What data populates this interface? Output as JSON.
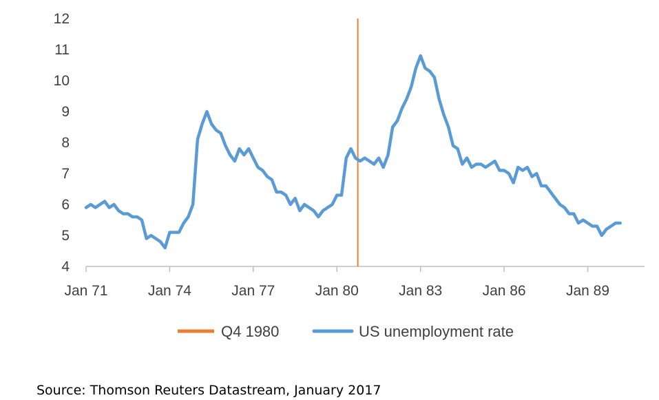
{
  "source_note": "Source: Thomson Reuters Datastream, January 2017",
  "chart_data": {
    "type": "line",
    "title": "",
    "xlabel": "",
    "ylabel": "",
    "x_range": [
      "1971-01",
      "1990-01"
    ],
    "ylim": [
      4,
      12
    ],
    "yticks": [
      4,
      5,
      6,
      7,
      8,
      9,
      10,
      11,
      12
    ],
    "y_tick_labels": [
      "4",
      "5",
      "6",
      "7",
      "8",
      "9",
      "10",
      "11",
      "12"
    ],
    "x_ticks": [
      "1971-01",
      "1974-01",
      "1977-01",
      "1980-01",
      "1983-01",
      "1986-01",
      "1989-01"
    ],
    "x_tick_labels": [
      "Jan 71",
      "Jan 74",
      "Jan 77",
      "Jan 80",
      "Jan 83",
      "Jan 86",
      "Jan 89"
    ],
    "grid": false,
    "legend_position": "bottom",
    "colors": {
      "series": "#5B9BD5",
      "marker": "#ED7D31",
      "axis": "#BFBFBF",
      "text": "#404040"
    },
    "marker_line": {
      "name": "Q4 1980",
      "x": "1980-10"
    },
    "series": [
      {
        "name": "US unemployment rate",
        "points": [
          [
            "1971-01",
            5.9
          ],
          [
            "1971-03",
            6.0
          ],
          [
            "1971-05",
            5.9
          ],
          [
            "1971-07",
            6.0
          ],
          [
            "1971-09",
            6.1
          ],
          [
            "1971-11",
            5.9
          ],
          [
            "1972-01",
            6.0
          ],
          [
            "1972-03",
            5.8
          ],
          [
            "1972-05",
            5.7
          ],
          [
            "1972-07",
            5.7
          ],
          [
            "1972-09",
            5.6
          ],
          [
            "1972-11",
            5.6
          ],
          [
            "1973-01",
            5.5
          ],
          [
            "1973-03",
            4.9
          ],
          [
            "1973-05",
            5.0
          ],
          [
            "1973-07",
            4.9
          ],
          [
            "1973-09",
            4.8
          ],
          [
            "1973-11",
            4.6
          ],
          [
            "1974-01",
            5.1
          ],
          [
            "1974-03",
            5.1
          ],
          [
            "1974-05",
            5.1
          ],
          [
            "1974-07",
            5.4
          ],
          [
            "1974-09",
            5.6
          ],
          [
            "1974-11",
            6.0
          ],
          [
            "1975-01",
            8.1
          ],
          [
            "1975-03",
            8.6
          ],
          [
            "1975-05",
            9.0
          ],
          [
            "1975-07",
            8.6
          ],
          [
            "1975-09",
            8.4
          ],
          [
            "1975-11",
            8.3
          ],
          [
            "1976-01",
            7.9
          ],
          [
            "1976-03",
            7.6
          ],
          [
            "1976-05",
            7.4
          ],
          [
            "1976-07",
            7.8
          ],
          [
            "1976-09",
            7.6
          ],
          [
            "1976-11",
            7.8
          ],
          [
            "1977-01",
            7.5
          ],
          [
            "1977-03",
            7.2
          ],
          [
            "1977-05",
            7.1
          ],
          [
            "1977-07",
            6.9
          ],
          [
            "1977-09",
            6.8
          ],
          [
            "1977-11",
            6.4
          ],
          [
            "1978-01",
            6.4
          ],
          [
            "1978-03",
            6.3
          ],
          [
            "1978-05",
            6.0
          ],
          [
            "1978-07",
            6.2
          ],
          [
            "1978-09",
            5.8
          ],
          [
            "1978-11",
            6.0
          ],
          [
            "1979-01",
            5.9
          ],
          [
            "1979-03",
            5.8
          ],
          [
            "1979-05",
            5.6
          ],
          [
            "1979-07",
            5.8
          ],
          [
            "1979-09",
            5.9
          ],
          [
            "1979-11",
            6.0
          ],
          [
            "1980-01",
            6.3
          ],
          [
            "1980-03",
            6.3
          ],
          [
            "1980-05",
            7.5
          ],
          [
            "1980-07",
            7.8
          ],
          [
            "1980-09",
            7.5
          ],
          [
            "1980-11",
            7.4
          ],
          [
            "1981-01",
            7.5
          ],
          [
            "1981-03",
            7.4
          ],
          [
            "1981-05",
            7.3
          ],
          [
            "1981-07",
            7.5
          ],
          [
            "1981-09",
            7.2
          ],
          [
            "1981-11",
            7.6
          ],
          [
            "1982-01",
            8.5
          ],
          [
            "1982-03",
            8.7
          ],
          [
            "1982-05",
            9.1
          ],
          [
            "1982-07",
            9.4
          ],
          [
            "1982-09",
            9.8
          ],
          [
            "1982-11",
            10.4
          ],
          [
            "1983-01",
            10.8
          ],
          [
            "1983-03",
            10.4
          ],
          [
            "1983-05",
            10.3
          ],
          [
            "1983-07",
            10.1
          ],
          [
            "1983-09",
            9.4
          ],
          [
            "1983-11",
            8.9
          ],
          [
            "1984-01",
            8.5
          ],
          [
            "1984-03",
            7.9
          ],
          [
            "1984-05",
            7.8
          ],
          [
            "1984-07",
            7.3
          ],
          [
            "1984-09",
            7.5
          ],
          [
            "1984-11",
            7.2
          ],
          [
            "1985-01",
            7.3
          ],
          [
            "1985-03",
            7.3
          ],
          [
            "1985-05",
            7.2
          ],
          [
            "1985-07",
            7.3
          ],
          [
            "1985-09",
            7.4
          ],
          [
            "1985-11",
            7.1
          ],
          [
            "1986-01",
            7.1
          ],
          [
            "1986-03",
            7.0
          ],
          [
            "1986-05",
            6.7
          ],
          [
            "1986-07",
            7.2
          ],
          [
            "1986-09",
            7.1
          ],
          [
            "1986-11",
            7.2
          ],
          [
            "1987-01",
            6.9
          ],
          [
            "1987-03",
            7.0
          ],
          [
            "1987-05",
            6.6
          ],
          [
            "1987-07",
            6.6
          ],
          [
            "1987-09",
            6.4
          ],
          [
            "1987-11",
            6.2
          ],
          [
            "1988-01",
            6.0
          ],
          [
            "1988-03",
            5.9
          ],
          [
            "1988-05",
            5.7
          ],
          [
            "1988-07",
            5.7
          ],
          [
            "1988-09",
            5.4
          ],
          [
            "1988-11",
            5.5
          ],
          [
            "1989-01",
            5.4
          ],
          [
            "1989-03",
            5.3
          ],
          [
            "1989-05",
            5.3
          ],
          [
            "1989-07",
            5.0
          ],
          [
            "1989-09",
            5.2
          ],
          [
            "1989-11",
            5.3
          ],
          [
            "1990-01",
            5.4
          ],
          [
            "1990-03",
            5.4
          ]
        ]
      }
    ]
  }
}
